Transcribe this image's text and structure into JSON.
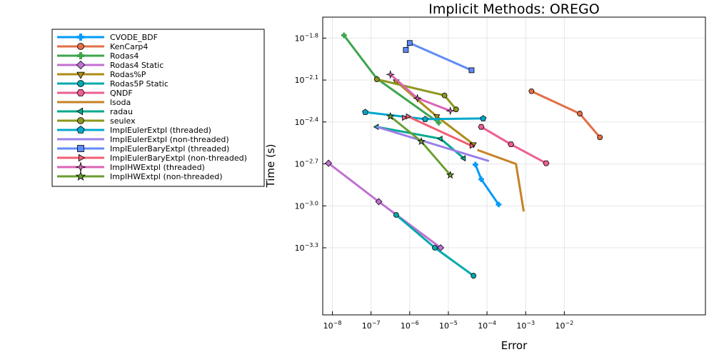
{
  "chart_data": {
    "type": "line",
    "title": "Implicit Methods: OREGO",
    "xlabel": "Error",
    "ylabel": "Time (s)",
    "xscale": "log10",
    "yscale": "log10",
    "xlim_log10": [
      -8.25,
      1.65
    ],
    "ylim_log10": [
      -3.78,
      -1.65
    ],
    "x_ticks": [
      {
        "exp": -8,
        "label": "10",
        "sup": "−8"
      },
      {
        "exp": -7,
        "label": "10",
        "sup": "−7"
      },
      {
        "exp": -6,
        "label": "10",
        "sup": "−6"
      },
      {
        "exp": -5,
        "label": "10",
        "sup": "−5"
      },
      {
        "exp": -4,
        "label": "10",
        "sup": "−4"
      },
      {
        "exp": -3,
        "label": "10",
        "sup": "−3"
      },
      {
        "exp": -2,
        "label": "10",
        "sup": "−2"
      }
    ],
    "y_ticks": [
      {
        "exp": -1.8,
        "label": "10",
        "sup": "−1.8"
      },
      {
        "exp": -2.1,
        "label": "10",
        "sup": "−2.1"
      },
      {
        "exp": -2.4,
        "label": "10",
        "sup": "−2.4"
      },
      {
        "exp": -2.7,
        "label": "10",
        "sup": "−2.7"
      },
      {
        "exp": -3.0,
        "label": "10",
        "sup": "−3.0"
      },
      {
        "exp": -3.3,
        "label": "10",
        "sup": "−3.3"
      }
    ],
    "grid": true,
    "legend_position": "outer-left",
    "series": [
      {
        "name": "CVODE_BDF",
        "color": "#009af9",
        "marker": "cross",
        "x_log10": [
          -4.3,
          -4.15,
          -3.7
        ],
        "y_log10": [
          -2.705,
          -2.81,
          -2.99
        ]
      },
      {
        "name": "KenCarp4",
        "color": "#e26f46",
        "marker": "circle",
        "x_log10": [
          -2.85,
          -1.6,
          -1.08
        ],
        "y_log10": [
          -2.18,
          -2.34,
          -2.51
        ]
      },
      {
        "name": "Rodas4",
        "color": "#3ea44e",
        "marker": "cross",
        "x_log10": [
          -7.7,
          -6.85,
          -5.25
        ],
        "y_log10": [
          -1.78,
          -2.09,
          -2.405
        ]
      },
      {
        "name": "Rodas4 Static",
        "color": "#c271d2",
        "marker": "diamond",
        "x_log10": [
          -8.1,
          -6.8,
          -5.2
        ],
        "y_log10": [
          -2.695,
          -2.97,
          -3.3
        ]
      },
      {
        "name": "Rodas%P",
        "color": "#ac8d18",
        "marker": "triangle-down",
        "x_log10": [
          -6.35,
          -5.3,
          -4.35
        ],
        "y_log10": [
          -2.11,
          -2.36,
          -2.56
        ]
      },
      {
        "name": "Rodas5P Static",
        "color": "#00a9ad",
        "marker": "circle",
        "x_log10": [
          -6.35,
          -5.35,
          -4.35
        ],
        "y_log10": [
          -3.065,
          -3.3,
          -3.5
        ]
      },
      {
        "name": "QNDF",
        "color": "#ed5e93",
        "marker": "hexagon",
        "x_log10": [
          -4.15,
          -3.38,
          -2.47
        ],
        "y_log10": [
          -2.435,
          -2.56,
          -2.695
        ]
      },
      {
        "name": "lsoda",
        "color": "#c68125",
        "marker": "none",
        "x_log10": [
          -4.25,
          -3.25,
          -3.05
        ],
        "y_log10": [
          -2.6,
          -2.7,
          -3.04
        ]
      },
      {
        "name": "radau",
        "color": "#00a98d",
        "marker": "triangle-left",
        "x_log10": [
          -6.85,
          -5.2,
          -4.6
        ],
        "y_log10": [
          -2.435,
          -2.52,
          -2.66
        ]
      },
      {
        "name": "seulex",
        "color": "#8e971d",
        "marker": "circle",
        "x_log10": [
          -6.85,
          -5.1,
          -4.8
        ],
        "y_log10": [
          -2.095,
          -2.21,
          -2.31
        ]
      },
      {
        "name": "ImplEulerExtpl (threaded)",
        "color": "#00a8cb",
        "marker": "pentagon",
        "x_log10": [
          -7.15,
          -5.6,
          -4.1
        ],
        "y_log10": [
          -2.33,
          -2.38,
          -2.375
        ]
      },
      {
        "name": "ImplEulerExtpl (non-threaded)",
        "color": "#9b7fe9",
        "marker": "none",
        "x_log10": [
          -6.85,
          -3.95
        ],
        "y_log10": [
          -2.435,
          -2.68
        ]
      },
      {
        "name": "ImplEulerBaryExtpl (threaded)",
        "color": "#608cf6",
        "marker": "square",
        "x_log10": [
          -6.1,
          -6.0,
          -4.4
        ],
        "y_log10": [
          -1.885,
          -1.835,
          -2.03
        ]
      },
      {
        "name": "ImplEulerBaryExtpl (non-threaded)",
        "color": "#f05f73",
        "marker": "triangle-right",
        "x_log10": [
          -6.15,
          -6.05,
          -4.4
        ],
        "y_log10": [
          -2.37,
          -2.36,
          -2.57
        ]
      },
      {
        "name": "ImplHWExtpl (threaded)",
        "color": "#dd64b5",
        "marker": "star4",
        "x_log10": [
          -6.5,
          -5.8,
          -4.95
        ],
        "y_log10": [
          -2.06,
          -2.23,
          -2.32
        ]
      },
      {
        "name": "ImplHWExtpl (non-threaded)",
        "color": "#6b9e32",
        "marker": "star5",
        "x_log10": [
          -6.5,
          -5.7,
          -4.95
        ],
        "y_log10": [
          -2.36,
          -2.54,
          -2.78
        ]
      }
    ]
  }
}
